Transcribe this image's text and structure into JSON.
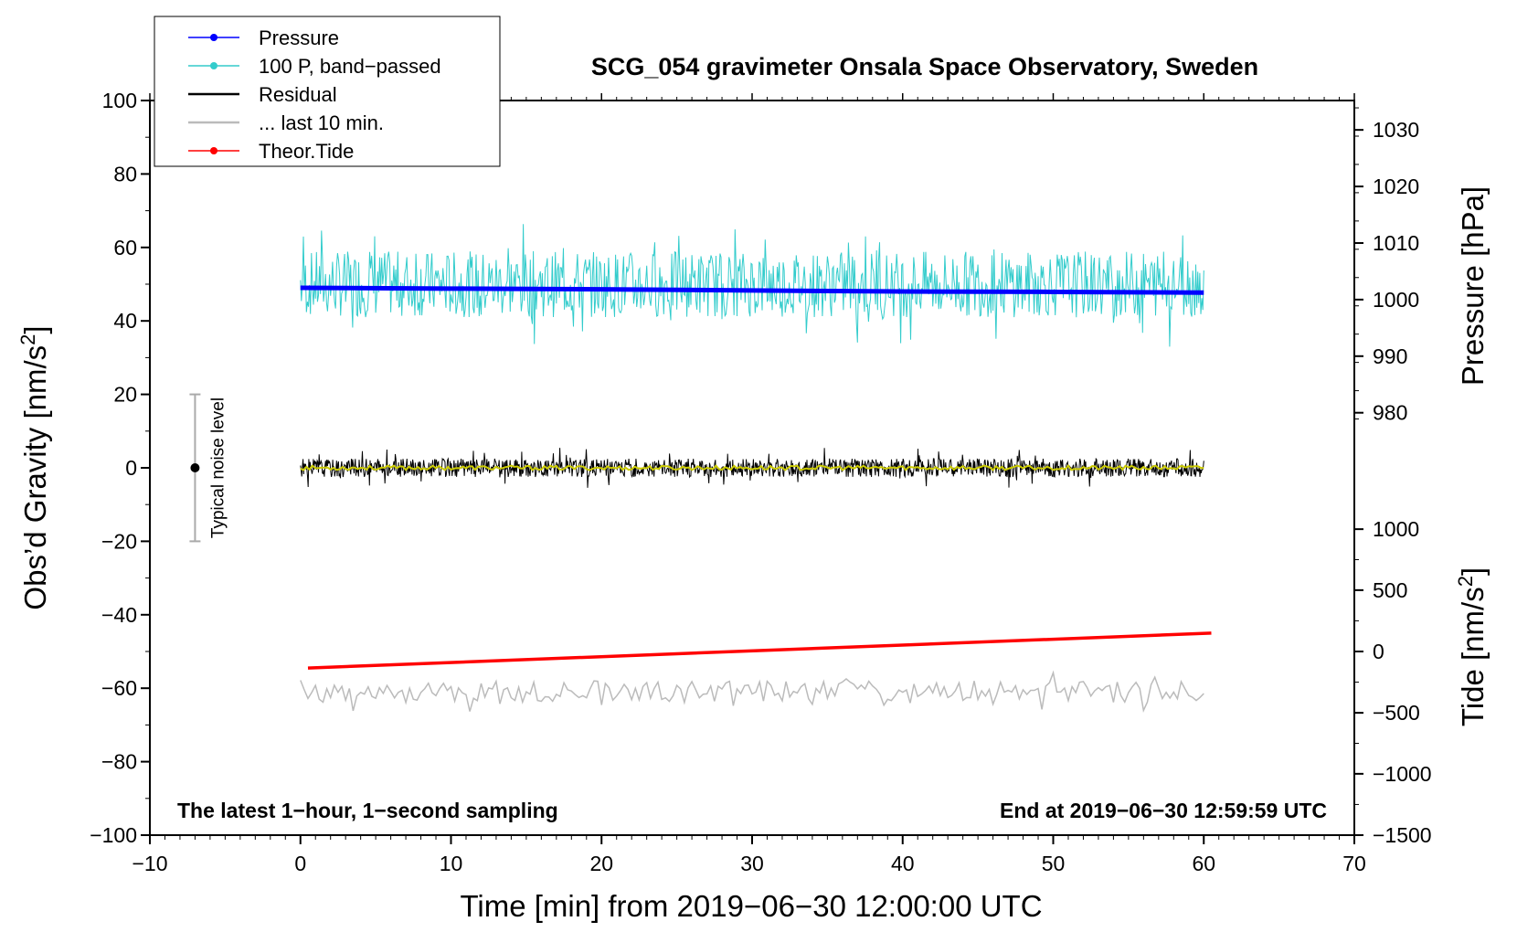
{
  "chart_data": {
    "type": "line",
    "title": "SCG_054 gravimeter Onsala Space Observatory, Sweden",
    "xlabel": "Time [min] from 2019−06−30 12:00:00 UTC",
    "ylabel_left_prefix": "Obs’d Gravity [nm/s",
    "ylabel_left_suffix": "]",
    "ylabel_right_top": "Pressure [hPa]",
    "ylabel_right_bottom_prefix": "Tide [nm/s",
    "ylabel_right_bottom_suffix": "]",
    "superscript": "2",
    "xlim": [
      -10,
      70
    ],
    "ylim_left": [
      -100,
      100
    ],
    "xticks": [
      -10,
      0,
      10,
      20,
      30,
      40,
      50,
      60,
      70
    ],
    "xtick_labels": [
      "−10",
      "0",
      "10",
      "20",
      "30",
      "40",
      "50",
      "60",
      "70"
    ],
    "yticks_left": [
      100,
      80,
      60,
      40,
      20,
      0,
      -20,
      -40,
      -60,
      -80,
      -100
    ],
    "ytick_left_labels": [
      "100",
      "80",
      "60",
      "40",
      "20",
      "0",
      "−20",
      "−40",
      "−60",
      "−80",
      "−100"
    ],
    "pressure_axis": {
      "ticks": [
        1030,
        1020,
        1010,
        1000,
        990,
        980
      ],
      "tick_labels": [
        "1030",
        "1020",
        "1010",
        "1000",
        "990",
        "980"
      ],
      "left_value_at_ticks": [
        92,
        76.6,
        61.2,
        45.8,
        30.4,
        15
      ]
    },
    "tide_axis": {
      "ticks": [
        1000,
        500,
        0,
        -500,
        -1000,
        -1500
      ],
      "tick_labels": [
        "1000",
        "500",
        "0",
        "−500",
        "−1000",
        "−1500"
      ],
      "left_value_at_ticks": [
        -16.7,
        -33.3,
        -50,
        -66.7,
        -83.3,
        -100
      ]
    },
    "annotations": {
      "bottom_left": "The latest 1−hour, 1−second sampling",
      "bottom_right": "End at 2019−06−30 12:59:59 UTC",
      "noise_label": "Typical noise level"
    },
    "noise_bar": {
      "x": -7,
      "center": 0,
      "low": -20,
      "high": 20
    },
    "legend": [
      {
        "label": "Pressure",
        "color": "#0000ff",
        "marker": true
      },
      {
        "label": "100 P, band−passed",
        "color": "#33cccc",
        "marker": true
      },
      {
        "label": "Residual",
        "color": "#000000",
        "marker": false
      },
      {
        "label": "... last 10 min.",
        "color": "#bbbbbb",
        "marker": false
      },
      {
        "label": "Theor.Tide",
        "color": "#ff0000",
        "marker": true
      }
    ],
    "series": [
      {
        "name": "Pressure",
        "color": "#0000ff",
        "x": [
          0,
          10,
          20,
          30,
          40,
          50,
          60
        ],
        "y": [
          49,
          48.8,
          48.6,
          48.3,
          48.0,
          47.9,
          47.7
        ]
      },
      {
        "name": "100 P, band-passed",
        "color": "#33cccc",
        "x_range": [
          0,
          60
        ],
        "center": 50,
        "amplitude": 9
      },
      {
        "name": "Residual",
        "color": "#000000",
        "x_range": [
          0,
          60
        ],
        "center": 0,
        "amplitude": 2.5
      },
      {
        "name": "Residual (smoothed)",
        "color": "#cccc00",
        "x_range": [
          0,
          60
        ],
        "center": 0,
        "amplitude": 0.6
      },
      {
        "name": "Theor.Tide",
        "color": "#ff0000",
        "x": [
          0.5,
          60.5
        ],
        "y": [
          -54.5,
          -45
        ]
      },
      {
        "name": "... last 10 min.",
        "color": "#bbbbbb",
        "x_range": [
          0,
          60
        ],
        "center": -61,
        "amplitude": 3
      }
    ]
  }
}
